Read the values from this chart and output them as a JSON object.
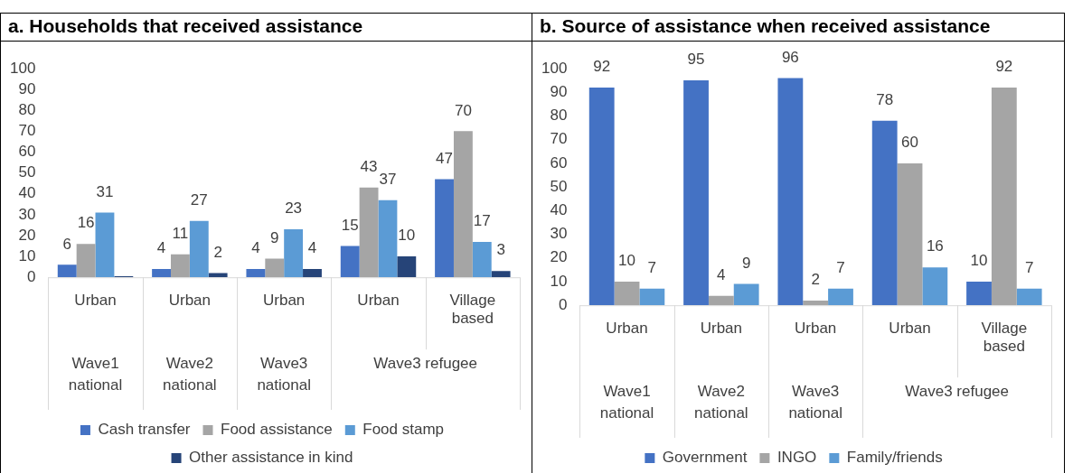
{
  "chart_data": [
    {
      "type": "bar",
      "title": "a. Households that received assistance",
      "categories": [
        "Urban",
        "Urban",
        "Urban",
        "Urban",
        "Village based"
      ],
      "ylim": [
        0,
        100
      ],
      "yticks": [
        0,
        10,
        20,
        30,
        40,
        50,
        60,
        70,
        80,
        90,
        100
      ],
      "grid": false,
      "legend": "bottom",
      "annotations": [
        "Wave1 national",
        "Wave2 national",
        "Wave3 national",
        "Wave3 refugee"
      ],
      "series": [
        {
          "name": "Cash transfer",
          "color": "#4472c4",
          "values": [
            6,
            4,
            4,
            15,
            47
          ],
          "value_labels": [
            "6",
            "4",
            "4",
            "15",
            "47"
          ]
        },
        {
          "name": "Food assistance",
          "color": "#a5a5a5",
          "values": [
            16,
            11,
            9,
            43,
            70
          ],
          "value_labels": [
            "16",
            "11",
            "9",
            "43",
            "70"
          ]
        },
        {
          "name": "Food stamp",
          "color": "#5b9bd5",
          "values": [
            31,
            27,
            23,
            37,
            17
          ],
          "value_labels": [
            "31",
            "27",
            "23",
            "37",
            "17"
          ]
        },
        {
          "name": "Other assistance in kind",
          "color": "#264478",
          "values": [
            0.5,
            2,
            4,
            10,
            3
          ],
          "value_labels": [
            null,
            "2",
            "4",
            "10",
            "3"
          ]
        }
      ]
    },
    {
      "type": "bar",
      "title": "b. Source of assistance when received assistance",
      "categories": [
        "Urban",
        "Urban",
        "Urban",
        "Urban",
        "Village based"
      ],
      "ylim": [
        0,
        100
      ],
      "yticks": [
        0,
        10,
        20,
        30,
        40,
        50,
        60,
        70,
        80,
        90,
        100
      ],
      "grid": false,
      "legend": "bottom",
      "data_labels": true,
      "annotations": [
        "Wave1 national",
        "Wave2 national",
        "Wave3 national",
        "Wave3 refugee"
      ],
      "series": [
        {
          "name": "Government",
          "color": "#4472c4",
          "values": [
            92,
            95,
            96,
            78,
            10
          ]
        },
        {
          "name": "INGO",
          "color": "#a5a5a5",
          "values": [
            10,
            4,
            2,
            60,
            92
          ]
        },
        {
          "name": "Family/friends",
          "color": "#5b9bd5",
          "values": [
            7,
            9,
            7,
            16,
            7
          ]
        }
      ]
    }
  ]
}
